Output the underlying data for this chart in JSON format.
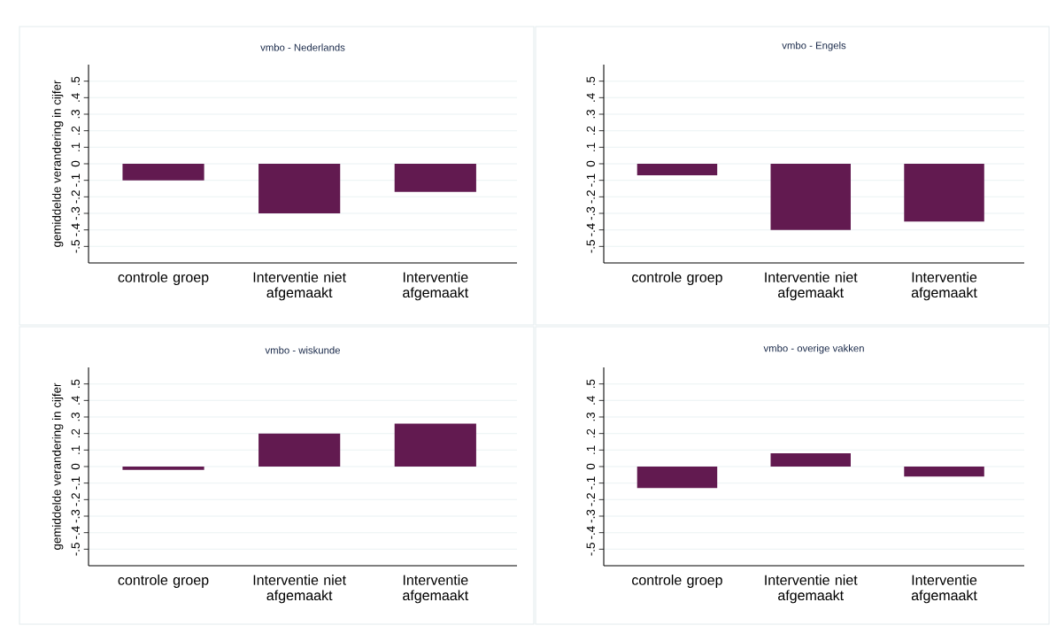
{
  "chart_data": [
    {
      "type": "bar",
      "title": "vmbo - Nederlands",
      "ylabel": "gemiddelde verandering in cijfer",
      "categories": [
        "controle groep",
        "Interventie niet afgemaakt",
        "Interventie afgemaakt"
      ],
      "values": [
        -0.1,
        -0.3,
        -0.17
      ],
      "color": "#621a50",
      "ylim": [
        -0.6,
        0.6
      ],
      "yticks": [
        {
          "value": -0.5,
          "label": "-.5"
        },
        {
          "value": -0.4,
          "label": "-.4"
        },
        {
          "value": -0.3,
          "label": "-.3"
        },
        {
          "value": -0.2,
          "label": "-.2"
        },
        {
          "value": -0.1,
          "label": "-.1"
        },
        0,
        {
          "value": 0.1,
          "label": ".1"
        },
        {
          "value": 0.2,
          "label": ".2"
        },
        {
          "value": 0.3,
          "label": ".3"
        },
        {
          "value": 0.4,
          "label": ".4"
        },
        {
          "value": 0.5,
          "label": ".5"
        }
      ],
      "grid": "y"
    },
    {
      "type": "bar",
      "title": "vmbo - Engels",
      "categories": [
        "controle groep",
        "Interventie niet afgemaakt",
        "Interventie afgemaakt"
      ],
      "values": [
        -0.07,
        -0.4,
        -0.35
      ],
      "color": "#621a50",
      "ylim": [
        -0.6,
        0.6
      ],
      "yticks": [
        {
          "value": -0.5,
          "label": "-.5"
        },
        {
          "value": -0.4,
          "label": "-.4"
        },
        {
          "value": -0.3,
          "label": "-.3"
        },
        {
          "value": -0.2,
          "label": "-.2"
        },
        {
          "value": -0.1,
          "label": "-.1"
        },
        0,
        {
          "value": 0.1,
          "label": ".1"
        },
        {
          "value": 0.2,
          "label": ".2"
        },
        {
          "value": 0.3,
          "label": ".3"
        },
        {
          "value": 0.4,
          "label": ".4"
        },
        {
          "value": 0.5,
          "label": ".5"
        }
      ],
      "grid": "y"
    },
    {
      "type": "bar",
      "title": "vmbo - wiskunde",
      "ylabel": "gemiddelde verandering in cijfer",
      "categories": [
        "controle groep",
        "Interventie niet afgemaakt",
        "Interventie afgemaakt"
      ],
      "values": [
        -0.02,
        0.2,
        0.26
      ],
      "color": "#621a50",
      "ylim": [
        -0.6,
        0.6
      ],
      "yticks": [
        {
          "value": -0.5,
          "label": "-.5"
        },
        {
          "value": -0.4,
          "label": "-.4"
        },
        {
          "value": -0.3,
          "label": "-.3"
        },
        {
          "value": -0.2,
          "label": "-.2"
        },
        {
          "value": -0.1,
          "label": "-.1"
        },
        0,
        {
          "value": 0.1,
          "label": ".1"
        },
        {
          "value": 0.2,
          "label": ".2"
        },
        {
          "value": 0.3,
          "label": ".3"
        },
        {
          "value": 0.4,
          "label": ".4"
        },
        {
          "value": 0.5,
          "label": ".5"
        }
      ],
      "grid": "y"
    },
    {
      "type": "bar",
      "title": "vmbo - overige vakken",
      "categories": [
        "controle groep",
        "Interventie niet afgemaakt",
        "Interventie afgemaakt"
      ],
      "values": [
        -0.13,
        0.08,
        -0.06
      ],
      "color": "#621a50",
      "ylim": [
        -0.6,
        0.6
      ],
      "yticks": [
        {
          "value": -0.5,
          "label": "-.5"
        },
        {
          "value": -0.4,
          "label": "-.4"
        },
        {
          "value": -0.3,
          "label": "-.3"
        },
        {
          "value": -0.2,
          "label": "-.2"
        },
        {
          "value": -0.1,
          "label": "-.1"
        },
        0,
        {
          "value": 0.1,
          "label": ".1"
        },
        {
          "value": 0.2,
          "label": ".2"
        },
        {
          "value": 0.3,
          "label": ".3"
        },
        {
          "value": 0.4,
          "label": ".4"
        },
        {
          "value": 0.5,
          "label": ".5"
        }
      ],
      "grid": "y"
    }
  ]
}
